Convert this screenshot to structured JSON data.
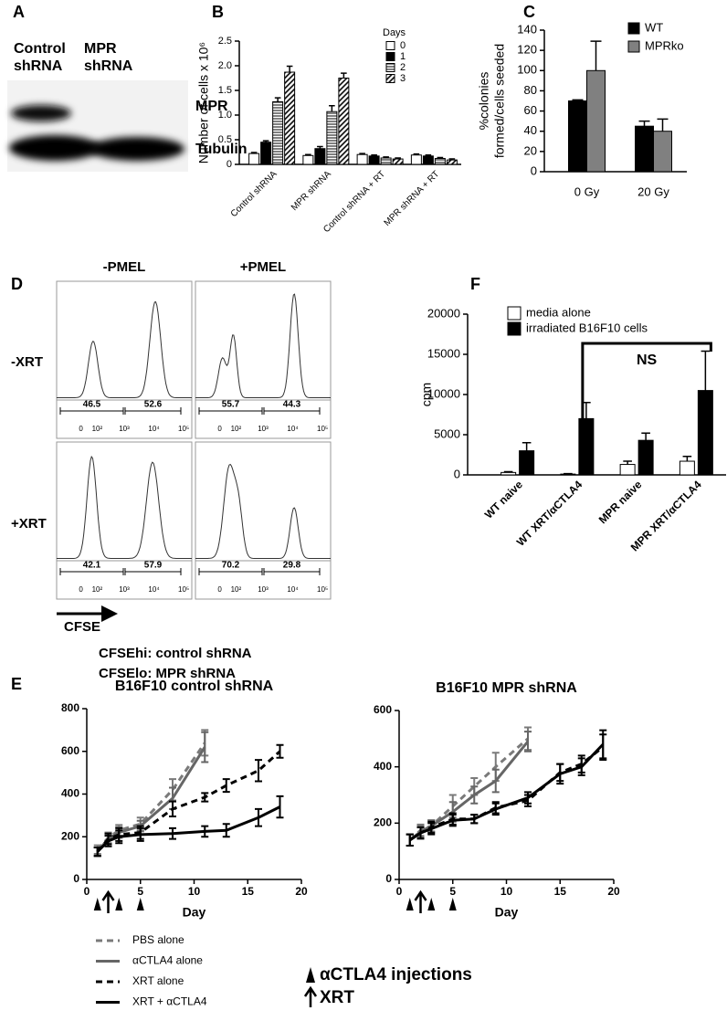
{
  "panel_labels": [
    "A",
    "B",
    "C",
    "D",
    "E",
    "F"
  ],
  "blot": {
    "lanes": [
      [
        "Control",
        "shRNA"
      ],
      [
        "MPR",
        "shRNA"
      ]
    ],
    "bands": [
      "MPR",
      "Tubulin"
    ]
  },
  "flow": {
    "columns": [
      "-PMEL",
      "+PMEL"
    ],
    "rows": [
      "-XRT",
      "+XRT"
    ],
    "x_ticks": [
      "0",
      "10²",
      "10³",
      "10⁴",
      "10⁵"
    ],
    "gates": [
      [
        46.5,
        52.6
      ],
      [
        55.7,
        44.3
      ],
      [
        42.1,
        57.9
      ],
      [
        70.2,
        29.8
      ]
    ],
    "xlabel": "CFSE",
    "notes": [
      "CFSEhi: control shRNA",
      "CFSElo: MPR shRNA"
    ]
  },
  "chart_data": [
    {
      "type": "bar",
      "ylabel": "Number of cells x 10⁶",
      "categories": [
        "Control shRNA",
        "MPR shRNA",
        "Control shRNA + RT",
        "MPR shRNA + RT"
      ],
      "label_rotation": -45,
      "legend": "upper right",
      "legend_title": "Days",
      "series": [
        {
          "name": "0",
          "color": "#ffffff",
          "values": [
            0.22,
            0.18,
            0.2,
            0.19
          ],
          "errors": [
            0.02,
            0.02,
            0.02,
            0.02
          ]
        },
        {
          "name": "1",
          "color": "#000000",
          "values": [
            0.45,
            0.32,
            0.17,
            0.17
          ],
          "errors": [
            0.03,
            0.04,
            0.02,
            0.02
          ]
        },
        {
          "name": "2",
          "color": "#ffffff",
          "hatch": "horizontal",
          "values": [
            1.27,
            1.07,
            0.13,
            0.12
          ],
          "errors": [
            0.08,
            0.12,
            0.02,
            0.02
          ]
        },
        {
          "name": "3",
          "color": "#ffffff",
          "hatch": "diagonal",
          "values": [
            1.87,
            1.75,
            0.11,
            0.09
          ],
          "errors": [
            0.12,
            0.1,
            0.02,
            0.02
          ]
        }
      ],
      "ylim": [
        0,
        2.5
      ],
      "yticks": [
        0,
        0.5,
        {
          "value": 1,
          "label": "1.0"
        },
        1.5,
        {
          "value": 2,
          "label": "2.0"
        },
        2.5
      ]
    },
    {
      "type": "bar",
      "ylabel": [
        "%colonies",
        "formed/cells seeded"
      ],
      "categories": [
        "0 Gy",
        "20 Gy"
      ],
      "legend": "upper right",
      "series": [
        {
          "name": "WT",
          "color": "#000000",
          "values": [
            70,
            45
          ],
          "errors": [
            1,
            5
          ]
        },
        {
          "name": "MPRko",
          "color": "#808080",
          "values": [
            100,
            40
          ],
          "errors": [
            29,
            12
          ]
        }
      ],
      "ylim": [
        0,
        140
      ],
      "yticks": [
        0,
        20,
        40,
        60,
        80,
        100,
        120,
        140
      ]
    },
    {
      "type": "bar",
      "ylabel": "cpm",
      "categories": [
        "WT naive",
        "WT XRT/αCTLA4",
        "MPR naive",
        "MPR XRT/αCTLA4"
      ],
      "label_rotation": -45,
      "legend": "upper left",
      "series": [
        {
          "name": "media alone",
          "color": "#ffffff",
          "values": [
            300,
            100,
            1300,
            1700
          ],
          "errors": [
            100,
            50,
            400,
            600
          ]
        },
        {
          "name": "irradiated B16F10 cells",
          "color": "#000000",
          "values": [
            3000,
            7000,
            4300,
            10500
          ],
          "errors": [
            1000,
            2000,
            900,
            4900
          ]
        }
      ],
      "bracket": {
        "label": "NS",
        "from": 1,
        "to": 3
      },
      "ylim": [
        0,
        20000
      ],
      "yticks": [
        0,
        5000,
        10000,
        15000,
        20000
      ]
    },
    {
      "type": "line",
      "title": "B16F10 control shRNA",
      "xlabel": "Day",
      "legend": "below",
      "xlim": [
        0,
        20
      ],
      "xticks": [
        0,
        5,
        10,
        15,
        20
      ],
      "ylim": [
        0,
        800
      ],
      "yticks": [
        0,
        200,
        400,
        600,
        800
      ],
      "injection_days": [
        1,
        3,
        5
      ],
      "xrt_days": [
        2
      ],
      "series": [
        {
          "name": "PBS alone",
          "color": "#7a7a7a",
          "dash": true,
          "x": [
            1,
            2,
            3,
            5,
            8,
            11
          ],
          "values": [
            140,
            195,
            230,
            260,
            420,
            640
          ],
          "errors": [
            20,
            25,
            25,
            30,
            50,
            60
          ]
        },
        {
          "name": "αCTLA4 alone",
          "color": "#666666",
          "dash": false,
          "x": [
            1,
            2,
            3,
            5,
            8,
            11
          ],
          "values": [
            130,
            190,
            220,
            250,
            380,
            620
          ],
          "errors": [
            20,
            25,
            25,
            25,
            50,
            70
          ]
        },
        {
          "name": "XRT alone",
          "color": "#000000",
          "dash": true,
          "x": [
            1,
            2,
            3,
            5,
            8,
            11,
            13,
            16,
            18
          ],
          "values": [
            130,
            190,
            210,
            220,
            330,
            385,
            440,
            510,
            600
          ],
          "errors": [
            20,
            25,
            30,
            30,
            35,
            20,
            30,
            50,
            30
          ]
        },
        {
          "name": "XRT + αCTLA4",
          "color": "#000000",
          "dash": false,
          "x": [
            1,
            2,
            3,
            5,
            8,
            11,
            13,
            16,
            18
          ],
          "values": [
            130,
            180,
            200,
            210,
            215,
            225,
            230,
            290,
            340
          ],
          "errors": [
            20,
            25,
            30,
            30,
            25,
            25,
            30,
            40,
            50
          ]
        }
      ]
    },
    {
      "type": "line",
      "title": "B16F10 MPR shRNA",
      "xlabel": "Day",
      "xlim": [
        0,
        20
      ],
      "xticks": [
        0,
        5,
        10,
        15,
        20
      ],
      "ylim": [
        0,
        600
      ],
      "yticks": [
        0,
        200,
        400,
        600
      ],
      "injection_days": [
        1,
        3,
        5
      ],
      "xrt_days": [
        2
      ],
      "series": [
        {
          "color": "#7a7a7a",
          "dash": true,
          "x": [
            1,
            2,
            3,
            5,
            7,
            9,
            12
          ],
          "values": [
            140,
            175,
            190,
            260,
            330,
            400,
            500
          ],
          "errors": [
            20,
            20,
            20,
            40,
            30,
            50,
            40
          ]
        },
        {
          "color": "#666666",
          "dash": false,
          "x": [
            1,
            2,
            3,
            5,
            7,
            9,
            12
          ],
          "values": [
            140,
            170,
            190,
            240,
            300,
            350,
            490
          ],
          "errors": [
            20,
            20,
            20,
            35,
            30,
            40,
            35
          ]
        },
        {
          "color": "#000000",
          "dash": true,
          "x": [
            1,
            2,
            3,
            5,
            7,
            9,
            12,
            15,
            17,
            19
          ],
          "values": [
            140,
            165,
            185,
            215,
            215,
            255,
            280,
            380,
            410,
            470
          ],
          "errors": [
            20,
            20,
            20,
            20,
            15,
            20,
            20,
            30,
            30,
            45
          ]
        },
        {
          "color": "#000000",
          "dash": false,
          "x": [
            1,
            2,
            3,
            5,
            7,
            9,
            12,
            15,
            17,
            19
          ],
          "values": [
            140,
            165,
            180,
            210,
            215,
            250,
            290,
            375,
            400,
            480
          ],
          "errors": [
            20,
            20,
            20,
            20,
            15,
            20,
            20,
            35,
            30,
            50
          ]
        }
      ]
    }
  ],
  "treatment_legend": [
    "αCTLA4 injections",
    "XRT"
  ]
}
